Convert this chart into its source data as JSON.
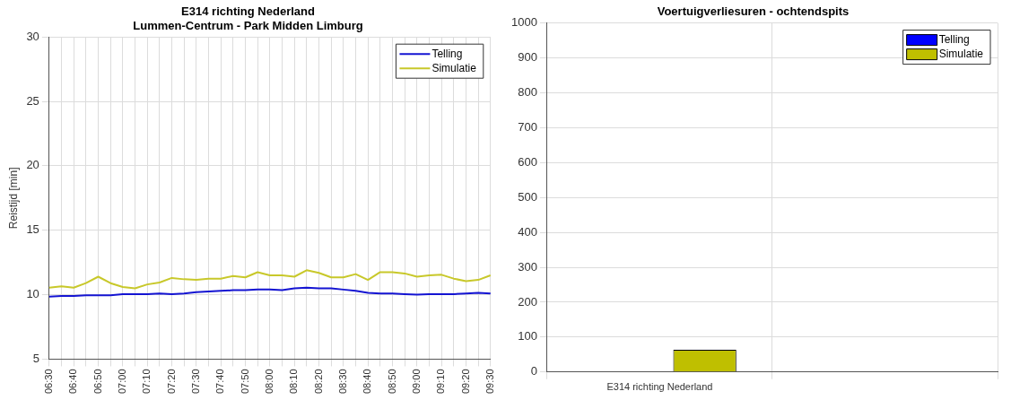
{
  "chart_data": [
    {
      "type": "line",
      "title": "E314 richting Nederland",
      "subtitle": "Lummen-Centrum - Park Midden Limburg",
      "ylabel": "Reistijd [min]",
      "categories": [
        "06:30",
        null,
        "06:40",
        null,
        "06:50",
        null,
        "07:00",
        null,
        "07:10",
        null,
        "07:20",
        null,
        "07:30",
        null,
        "07:40",
        null,
        "07:50",
        null,
        "08:00",
        null,
        "08:10",
        null,
        "08:20",
        null,
        "08:30",
        null,
        "08:40",
        null,
        "08:50",
        null,
        "09:00",
        null,
        "09:10",
        null,
        "09:20",
        null,
        "09:30"
      ],
      "series": [
        {
          "name": "Telling",
          "color": "#1414d2",
          "values": [
            9.85,
            9.9,
            9.9,
            9.95,
            9.95,
            9.95,
            10.05,
            10.05,
            10.05,
            10.1,
            10.05,
            10.1,
            10.2,
            10.25,
            10.3,
            10.35,
            10.35,
            10.4,
            10.4,
            10.35,
            10.5,
            10.55,
            10.5,
            10.5,
            10.4,
            10.3,
            10.15,
            10.1,
            10.1,
            10.05,
            10.0,
            10.05,
            10.05,
            10.05,
            10.1,
            10.15,
            10.1
          ]
        },
        {
          "name": "Simulatie",
          "color": "#c8c82a",
          "values": [
            10.55,
            10.65,
            10.55,
            10.9,
            11.4,
            10.9,
            10.6,
            10.5,
            10.8,
            10.95,
            11.3,
            11.2,
            11.15,
            11.25,
            11.25,
            11.45,
            11.35,
            11.75,
            11.5,
            11.5,
            11.4,
            11.9,
            11.7,
            11.35,
            11.35,
            11.6,
            11.15,
            11.75,
            11.75,
            11.65,
            11.4,
            11.5,
            11.55,
            11.25,
            11.05,
            11.15,
            11.5
          ]
        }
      ],
      "ylim": [
        5,
        30
      ],
      "yticks": [
        5,
        10,
        15,
        20,
        25,
        30
      ],
      "grid": true,
      "legend": "top right",
      "marker": "none",
      "line_style": "solid"
    },
    {
      "type": "bar",
      "title": "Voertuigverliesuren - ochtendspits",
      "categories": [
        "E314 richting Nederland",
        null
      ],
      "series": [
        {
          "name": "Telling",
          "color": "#0000ff",
          "values": [
            0,
            null
          ]
        },
        {
          "name": "Simulatie",
          "color": "#bfbf00",
          "values": [
            64,
            null
          ]
        }
      ],
      "ylim": [
        0,
        1000
      ],
      "yticks": [
        0,
        100,
        200,
        300,
        400,
        500,
        600,
        700,
        800,
        900,
        1000
      ],
      "grid": true,
      "legend": "top right"
    }
  ]
}
